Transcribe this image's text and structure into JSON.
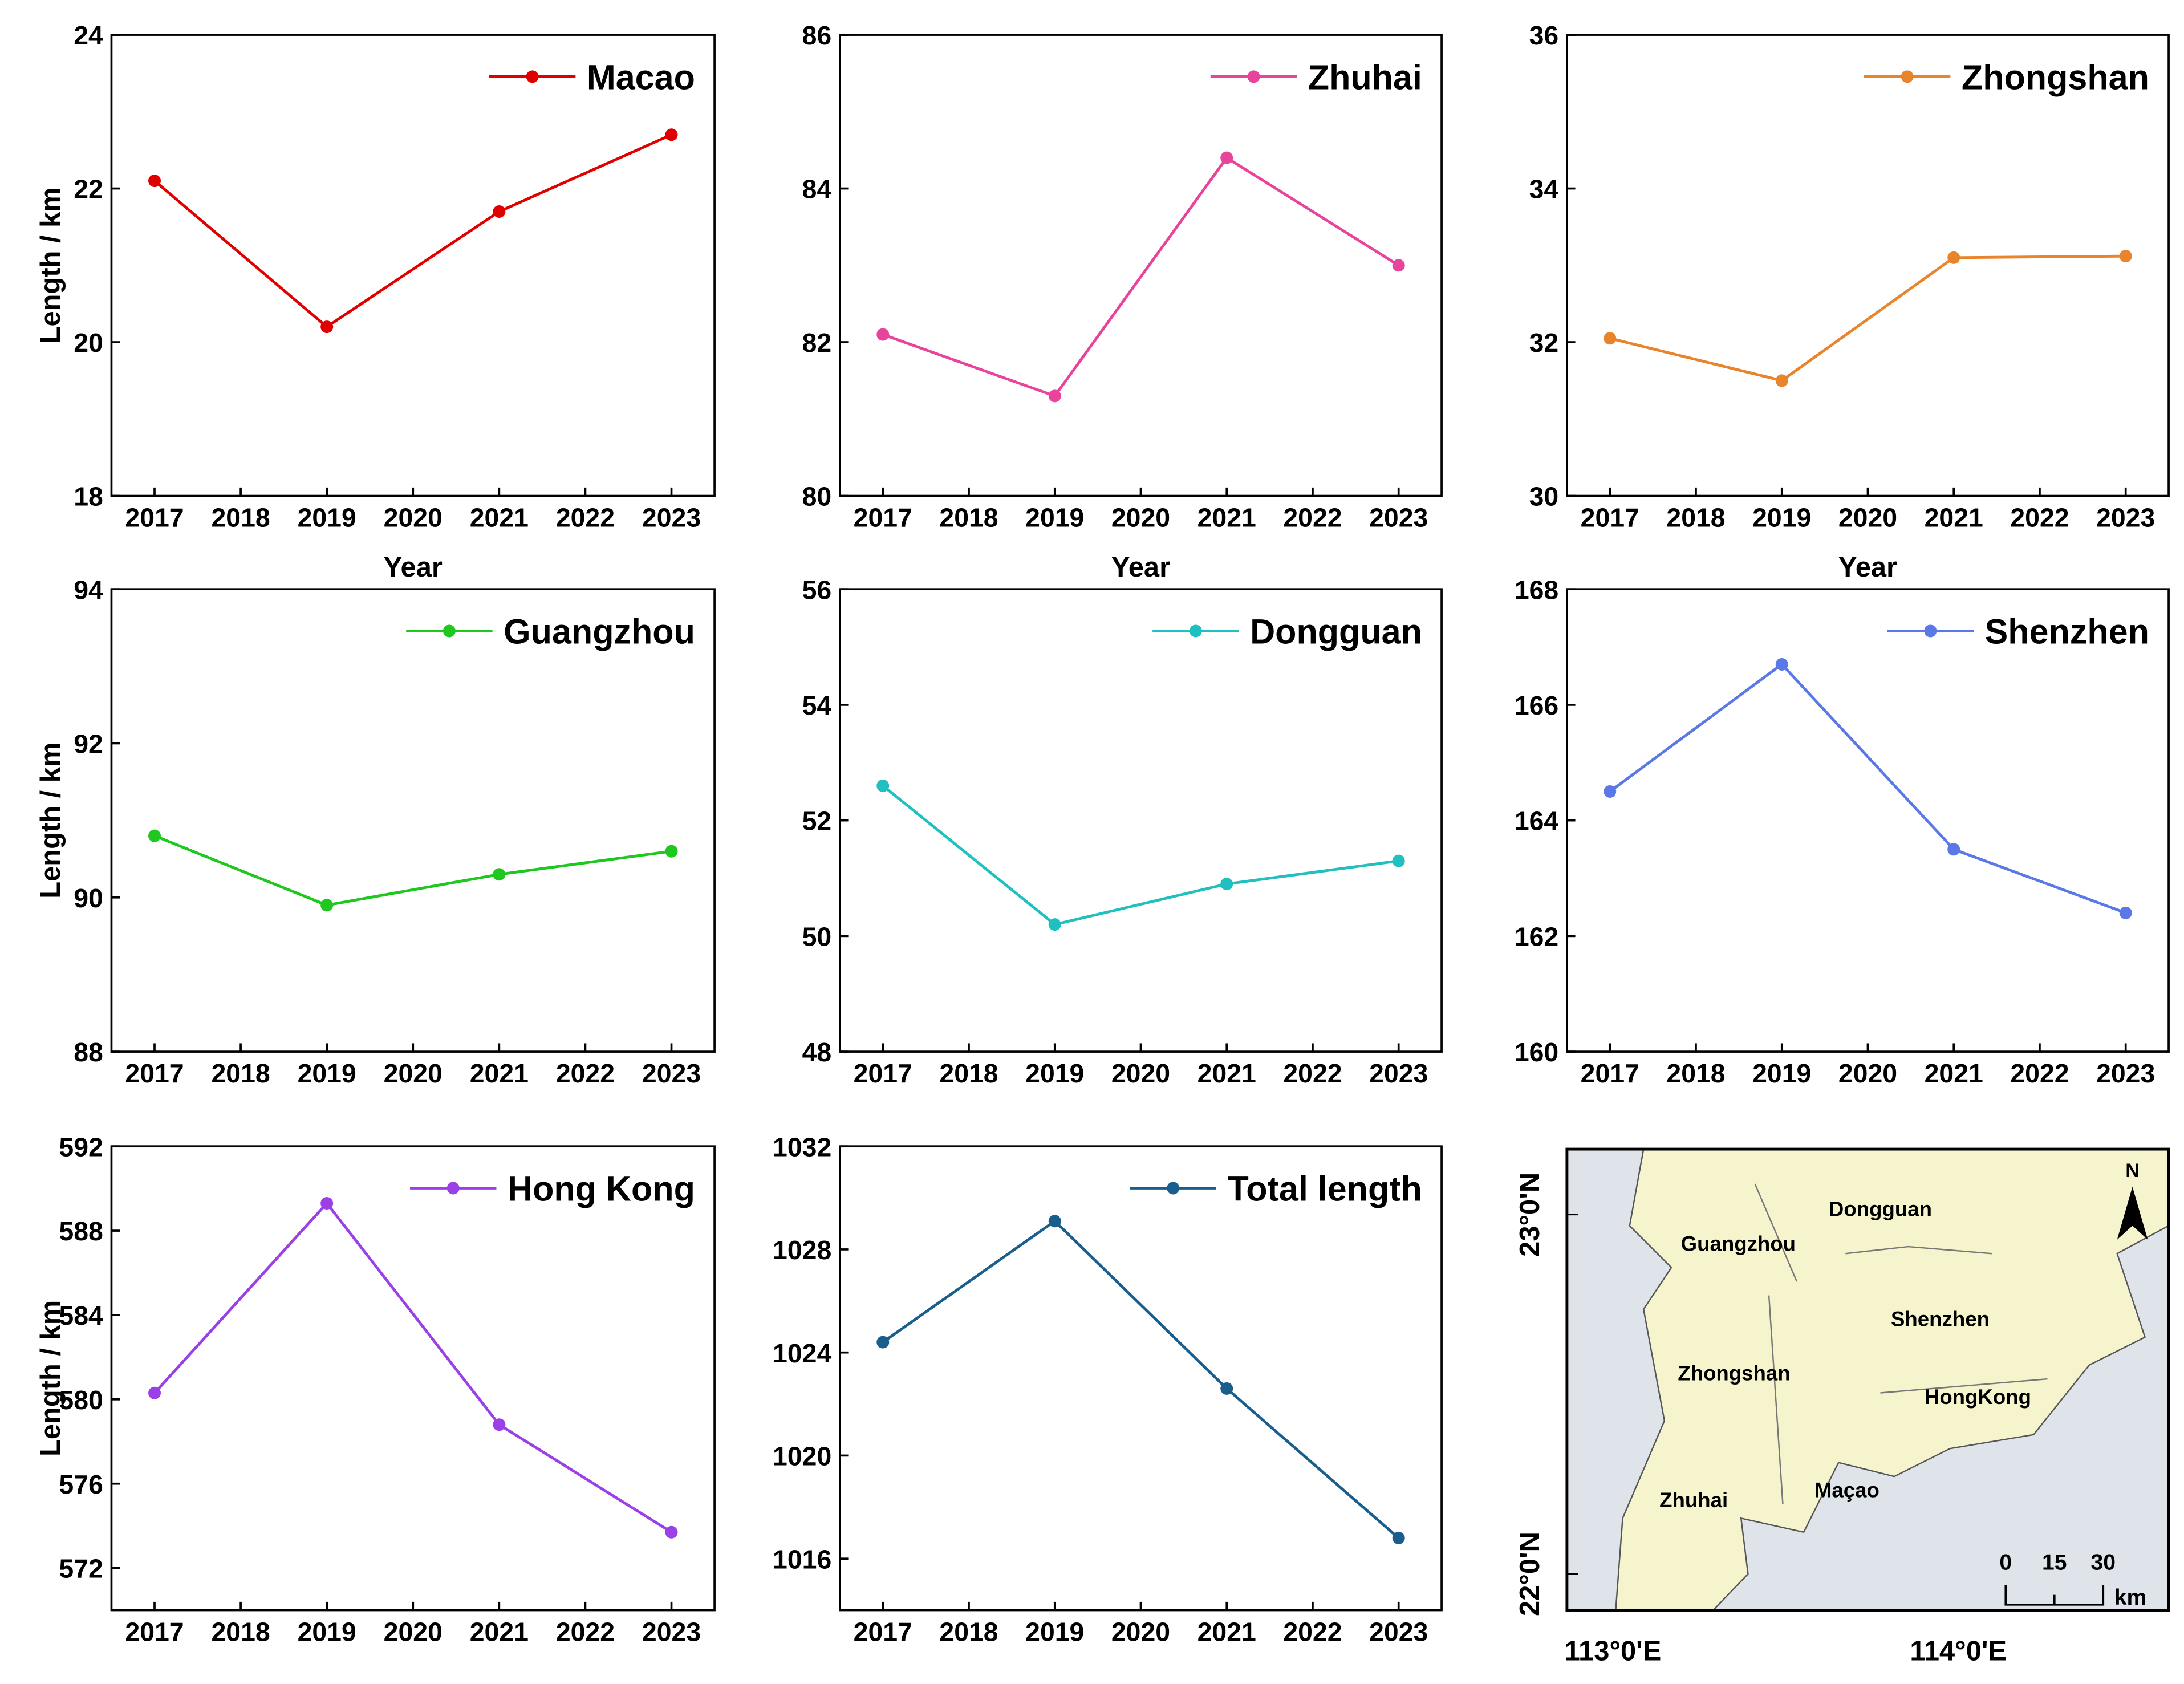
{
  "chart_data": [
    {
      "type": "line",
      "x": [
        2017,
        2019,
        2021,
        2023
      ],
      "xlim": [
        2016.5,
        2023.5
      ],
      "xticks": [
        2017,
        2018,
        2019,
        2020,
        2021,
        2022,
        2023
      ],
      "ylim": [
        18,
        24
      ],
      "yticks": [
        18,
        20,
        22,
        24
      ],
      "x_label": "Year",
      "y_label": "Length / km",
      "series": [
        {
          "name": "Macao",
          "color": "#e00000",
          "values": [
            22.1,
            20.2,
            21.7,
            22.7
          ]
        }
      ]
    },
    {
      "type": "line",
      "x": [
        2017,
        2019,
        2021,
        2023
      ],
      "xlim": [
        2016.5,
        2023.5
      ],
      "xticks": [
        2017,
        2018,
        2019,
        2020,
        2021,
        2022,
        2023
      ],
      "ylim": [
        80,
        86
      ],
      "yticks": [
        80,
        82,
        84,
        86
      ],
      "x_label": "Year",
      "series": [
        {
          "name": "Zhuhai",
          "color": "#e8449b",
          "values": [
            82.1,
            81.3,
            84.4,
            83.0
          ]
        }
      ]
    },
    {
      "type": "line",
      "x": [
        2017,
        2019,
        2021,
        2023
      ],
      "xlim": [
        2016.5,
        2023.5
      ],
      "xticks": [
        2017,
        2018,
        2019,
        2020,
        2021,
        2022,
        2023
      ],
      "ylim": [
        30,
        36
      ],
      "yticks": [
        30,
        32,
        34,
        36
      ],
      "x_label": "Year",
      "series": [
        {
          "name": "Zhongshan",
          "color": "#e8842c",
          "values": [
            32.05,
            31.5,
            33.1,
            33.12
          ]
        }
      ]
    },
    {
      "type": "line",
      "x": [
        2017,
        2019,
        2021,
        2023
      ],
      "xlim": [
        2016.5,
        2023.5
      ],
      "xticks": [
        2017,
        2018,
        2019,
        2020,
        2021,
        2022,
        2023
      ],
      "ylim": [
        88,
        94
      ],
      "yticks": [
        88,
        90,
        92,
        94
      ],
      "y_label": "Length / km",
      "series": [
        {
          "name": "Guangzhou",
          "color": "#1ec81e",
          "values": [
            90.8,
            89.9,
            90.3,
            90.6
          ]
        }
      ]
    },
    {
      "type": "line",
      "x": [
        2017,
        2019,
        2021,
        2023
      ],
      "xlim": [
        2016.5,
        2023.5
      ],
      "xticks": [
        2017,
        2018,
        2019,
        2020,
        2021,
        2022,
        2023
      ],
      "ylim": [
        48,
        56
      ],
      "yticks": [
        48,
        50,
        52,
        54,
        56
      ],
      "series": [
        {
          "name": "Dongguan",
          "color": "#20c0c0",
          "values": [
            52.6,
            50.2,
            50.9,
            51.3
          ]
        }
      ]
    },
    {
      "type": "line",
      "x": [
        2017,
        2019,
        2021,
        2023
      ],
      "xlim": [
        2016.5,
        2023.5
      ],
      "xticks": [
        2017,
        2018,
        2019,
        2020,
        2021,
        2022,
        2023
      ],
      "ylim": [
        160,
        168
      ],
      "yticks": [
        160,
        162,
        164,
        166,
        168
      ],
      "series": [
        {
          "name": "Shenzhen",
          "color": "#5a78e6",
          "values": [
            164.5,
            166.7,
            163.5,
            162.4
          ]
        }
      ]
    },
    {
      "type": "line",
      "x": [
        2017,
        2019,
        2021,
        2023
      ],
      "xlim": [
        2016.5,
        2023.5
      ],
      "xticks": [
        2017,
        2018,
        2019,
        2020,
        2021,
        2022,
        2023
      ],
      "ylim": [
        570,
        592
      ],
      "yticks": [
        572,
        576,
        580,
        584,
        588,
        592
      ],
      "y_label": "Length / km",
      "series": [
        {
          "name": "Hong Kong",
          "color": "#9a40e6",
          "values": [
            580.3,
            589.3,
            578.8,
            573.7
          ]
        }
      ]
    },
    {
      "type": "line",
      "x": [
        2017,
        2019,
        2021,
        2023
      ],
      "xlim": [
        2016.5,
        2023.5
      ],
      "xticks": [
        2017,
        2018,
        2019,
        2020,
        2021,
        2022,
        2023
      ],
      "ylim": [
        1014,
        1032
      ],
      "yticks": [
        1016,
        1020,
        1024,
        1028,
        1032
      ],
      "series": [
        {
          "name": "Total length",
          "color": "#1a5e8e",
          "values": [
            1024.4,
            1029.1,
            1022.6,
            1016.8
          ]
        }
      ]
    }
  ],
  "map": {
    "labels": [
      "Dongguan",
      "Guangzhou",
      "Shenzhen",
      "Zhongshan",
      "HongKong",
      "Zhuhai",
      "Maçao"
    ],
    "north": "N",
    "lat_labels": [
      "23°0'N",
      "22°0'N"
    ],
    "lon_labels": [
      "113°0'E",
      "114°0'E"
    ],
    "scale_labels": [
      "0",
      "15",
      "30"
    ],
    "scale_unit": "km"
  }
}
